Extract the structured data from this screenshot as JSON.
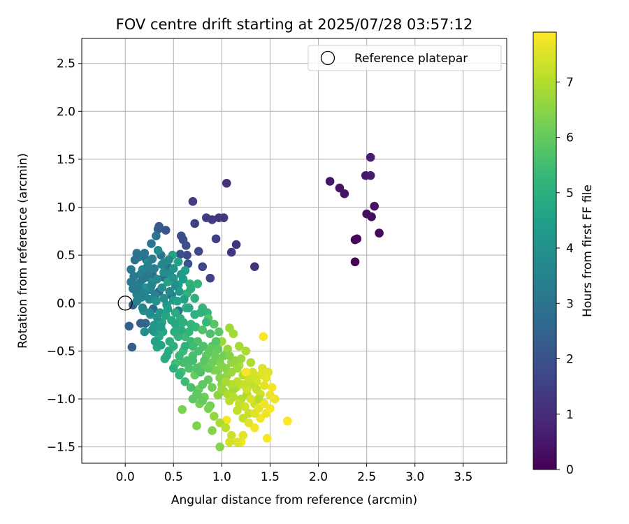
{
  "chart_data": {
    "type": "scatter",
    "title": "FOV centre drift starting at 2025/07/28 03:57:12",
    "xlabel": "Angular distance from reference (arcmin)",
    "ylabel": "Rotation from reference (arcmin)",
    "xlim": [
      -0.45,
      3.95
    ],
    "ylim": [
      -1.67,
      2.76
    ],
    "xticks": [
      "0.0",
      "0.5",
      "1.0",
      "1.5",
      "2.0",
      "2.5",
      "3.0",
      "3.5"
    ],
    "yticks": [
      "−1.5",
      "−1.0",
      "−0.5",
      "0.0",
      "0.5",
      "1.0",
      "1.5",
      "2.0",
      "2.5"
    ],
    "grid": true,
    "legend": {
      "label": "Reference platepar",
      "position": "top-right",
      "x": 0.0,
      "y": 0.0
    },
    "colorbar": {
      "label": "Hours from first FF file",
      "range": [
        0,
        7.9
      ],
      "ticks": [
        "0",
        "1",
        "2",
        "3",
        "4",
        "5",
        "6",
        "7"
      ],
      "colormap": [
        "#440154",
        "#482878",
        "#3e4989",
        "#31688e",
        "#26828e",
        "#1f9e89",
        "#35b779",
        "#6ece58",
        "#b5de2b",
        "#fde725"
      ]
    },
    "points": [
      [
        2.38,
        0.43,
        0.05
      ],
      [
        2.38,
        0.66,
        0.1
      ],
      [
        2.4,
        0.67,
        0.15
      ],
      [
        2.63,
        0.73,
        0.2
      ],
      [
        2.55,
        0.9,
        0.25
      ],
      [
        2.5,
        0.93,
        0.3
      ],
      [
        2.58,
        1.01,
        0.35
      ],
      [
        2.27,
        1.14,
        0.4
      ],
      [
        2.22,
        1.2,
        0.45
      ],
      [
        2.12,
        1.27,
        0.5
      ],
      [
        2.49,
        1.33,
        0.55
      ],
      [
        2.54,
        1.33,
        0.6
      ],
      [
        2.54,
        1.52,
        0.65
      ],
      [
        1.05,
        1.25,
        1.05
      ],
      [
        1.34,
        0.38,
        1.1
      ],
      [
        1.15,
        0.61,
        1.15
      ],
      [
        1.1,
        0.53,
        1.2
      ],
      [
        1.02,
        0.89,
        1.25
      ],
      [
        0.97,
        0.89,
        1.3
      ],
      [
        0.9,
        0.87,
        1.35
      ],
      [
        0.84,
        0.89,
        1.4
      ],
      [
        0.7,
        1.06,
        1.45
      ],
      [
        0.72,
        0.83,
        1.5
      ],
      [
        0.94,
        0.67,
        1.55
      ],
      [
        0.88,
        0.26,
        1.6
      ],
      [
        0.8,
        0.38,
        1.65
      ],
      [
        0.76,
        0.54,
        1.7
      ],
      [
        0.64,
        0.5,
        1.75
      ],
      [
        0.6,
        0.66,
        1.8
      ],
      [
        0.58,
        0.7,
        1.9
      ],
      [
        0.63,
        0.6,
        1.95
      ],
      [
        0.57,
        0.51,
        2.0
      ],
      [
        0.65,
        0.41,
        2.05
      ],
      [
        0.42,
        0.76,
        2.1
      ],
      [
        0.35,
        0.8,
        2.2
      ],
      [
        0.34,
        0.77,
        2.3
      ],
      [
        0.07,
        -0.46,
        2.35
      ],
      [
        0.04,
        -0.24,
        2.4
      ],
      [
        0.08,
        -0.02,
        2.45
      ],
      [
        0.16,
        -0.21,
        2.5
      ],
      [
        0.21,
        -0.21,
        2.55
      ],
      [
        0.29,
        -0.06,
        2.6
      ],
      [
        0.35,
        0.12,
        2.65
      ],
      [
        0.28,
        0.3,
        2.7
      ],
      [
        0.22,
        0.45,
        2.75
      ],
      [
        0.4,
        0.27,
        2.8
      ],
      [
        0.48,
        0.08,
        2.85
      ],
      [
        0.55,
        -0.08,
        2.9
      ],
      [
        0.44,
        0.38,
        2.95
      ],
      [
        0.37,
        0.5,
        3.0
      ],
      [
        0.32,
        0.7,
        3.05
      ],
      [
        0.27,
        0.62,
        3.1
      ],
      [
        0.14,
        0.48,
        3.15
      ],
      [
        0.06,
        0.35,
        3.2
      ],
      [
        0.06,
        0.22,
        3.25
      ],
      [
        0.1,
        0.19,
        3.3
      ],
      [
        0.15,
        0.21,
        3.35
      ],
      [
        0.22,
        0.27,
        3.4
      ],
      [
        0.26,
        0.14,
        3.45
      ],
      [
        0.31,
        0.08,
        3.5
      ],
      [
        0.12,
        0.09,
        3.55
      ],
      [
        0.17,
        0.06,
        3.6
      ],
      [
        0.25,
        0.04,
        3.65
      ],
      [
        0.18,
        0.35,
        3.7
      ],
      [
        0.24,
        0.43,
        3.75
      ],
      [
        0.34,
        0.55,
        3.8
      ],
      [
        0.4,
        0.42,
        3.85
      ],
      [
        0.46,
        0.31,
        3.9
      ],
      [
        0.38,
        0.16,
        3.95
      ],
      [
        0.28,
        0.21,
        4.0
      ],
      [
        0.21,
        0.16,
        4.05
      ],
      [
        0.19,
        -0.08,
        4.1
      ],
      [
        0.3,
        -0.23,
        4.15
      ],
      [
        0.36,
        -0.1,
        4.2
      ],
      [
        0.43,
        -0.02,
        4.25
      ],
      [
        0.5,
        0.03,
        4.3
      ],
      [
        0.55,
        0.19,
        4.35
      ],
      [
        0.6,
        0.25,
        4.4
      ],
      [
        0.62,
        0.34,
        4.45
      ],
      [
        0.55,
        0.43,
        4.5
      ],
      [
        0.49,
        0.5,
        4.55
      ],
      [
        0.44,
        0.22,
        4.6
      ],
      [
        0.42,
        -0.13,
        4.65
      ],
      [
        0.39,
        -0.3,
        4.7
      ],
      [
        0.33,
        -0.46,
        4.75
      ],
      [
        0.41,
        -0.58,
        4.8
      ],
      [
        0.45,
        -0.5,
        4.85
      ],
      [
        0.51,
        -0.3,
        4.9
      ],
      [
        0.57,
        -0.16,
        4.95
      ],
      [
        0.63,
        -0.05,
        5.0
      ],
      [
        0.64,
        0.1,
        5.05
      ],
      [
        0.67,
        0.2,
        5.1
      ],
      [
        0.75,
        0.2,
        5.15
      ],
      [
        0.8,
        -0.05,
        5.2
      ],
      [
        0.85,
        -0.1,
        5.25
      ],
      [
        0.73,
        -0.25,
        5.3
      ],
      [
        0.68,
        -0.4,
        5.35
      ],
      [
        0.6,
        -0.5,
        5.4
      ],
      [
        0.52,
        -0.63,
        5.45
      ],
      [
        0.58,
        -0.72,
        5.5
      ],
      [
        0.64,
        -0.6,
        5.55
      ],
      [
        0.7,
        -0.55,
        5.6
      ],
      [
        0.75,
        -0.4,
        5.65
      ],
      [
        0.8,
        -0.28,
        5.7
      ],
      [
        0.86,
        -0.16,
        5.75
      ],
      [
        0.92,
        -0.22,
        5.8
      ],
      [
        0.97,
        -0.3,
        5.85
      ],
      [
        0.9,
        -0.45,
        5.9
      ],
      [
        0.84,
        -0.55,
        5.95
      ],
      [
        0.78,
        -0.66,
        6.0
      ],
      [
        0.72,
        -0.75,
        6.05
      ],
      [
        0.76,
        -0.9,
        6.1
      ],
      [
        0.82,
        -0.98,
        6.15
      ],
      [
        0.88,
        -1.07,
        6.2
      ],
      [
        0.77,
        -1.05,
        6.25
      ],
      [
        0.59,
        -1.11,
        6.3
      ],
      [
        0.74,
        -1.28,
        6.35
      ],
      [
        0.9,
        -1.33,
        6.4
      ],
      [
        0.98,
        -1.5,
        6.45
      ],
      [
        1.0,
        -0.85,
        6.5
      ],
      [
        1.05,
        -0.76,
        6.55
      ],
      [
        1.1,
        -0.62,
        6.6
      ],
      [
        1.06,
        -0.48,
        6.65
      ],
      [
        1.0,
        -0.4,
        6.7
      ],
      [
        1.08,
        -0.26,
        6.75
      ],
      [
        1.12,
        -0.32,
        6.8
      ],
      [
        1.18,
        -0.45,
        6.85
      ],
      [
        1.25,
        -0.5,
        6.9
      ],
      [
        1.3,
        -0.62,
        6.95
      ],
      [
        1.22,
        -0.75,
        7.0
      ],
      [
        1.15,
        -0.88,
        7.05
      ],
      [
        1.08,
        -1.02,
        7.1
      ],
      [
        1.16,
        -1.12,
        7.15
      ],
      [
        1.22,
        -1.2,
        7.2
      ],
      [
        1.28,
        -1.15,
        7.25
      ],
      [
        1.34,
        -1.05,
        7.3
      ],
      [
        1.4,
        -0.95,
        7.35
      ],
      [
        1.36,
        -0.82,
        7.4
      ],
      [
        1.32,
        -0.72,
        7.45
      ],
      [
        1.42,
        -0.68,
        7.5
      ],
      [
        1.48,
        -0.72,
        7.55
      ],
      [
        1.44,
        -0.86,
        7.6
      ],
      [
        1.5,
        -0.96,
        7.65
      ],
      [
        1.55,
        -1.0,
        7.7
      ],
      [
        1.46,
        -1.15,
        7.72
      ],
      [
        1.4,
        -1.2,
        7.75
      ],
      [
        1.34,
        -1.3,
        7.78
      ],
      [
        1.2,
        -1.45,
        7.8
      ],
      [
        1.05,
        -1.22,
        7.82
      ],
      [
        1.47,
        -1.41,
        7.85
      ],
      [
        1.43,
        -0.35,
        7.87
      ],
      [
        1.68,
        -1.23,
        7.9
      ],
      [
        1.25,
        -0.72,
        7.85
      ],
      [
        1.18,
        -0.65,
        6.9
      ],
      [
        1.12,
        -0.9,
        6.8
      ],
      [
        1.2,
        -1.0,
        7.0
      ],
      [
        1.26,
        -0.95,
        6.95
      ],
      [
        1.3,
        -0.85,
        7.1
      ],
      [
        1.36,
        -0.9,
        7.2
      ],
      [
        1.38,
        -1.0,
        7.0
      ],
      [
        0.95,
        -0.6,
        6.3
      ],
      [
        0.92,
        -0.7,
        6.35
      ],
      [
        0.98,
        -0.78,
        6.4
      ],
      [
        1.02,
        -0.92,
        6.45
      ],
      [
        0.96,
        -0.96,
        6.5
      ],
      [
        0.9,
        -0.88,
        6.2
      ],
      [
        0.86,
        -0.8,
        6.0
      ],
      [
        0.8,
        -0.85,
        5.9
      ],
      [
        0.74,
        -0.95,
        5.8
      ],
      [
        0.7,
        -1.0,
        5.85
      ],
      [
        0.78,
        -0.72,
        5.7
      ],
      [
        0.66,
        -0.68,
        5.6
      ],
      [
        0.6,
        -0.62,
        5.5
      ],
      [
        0.56,
        -0.55,
        5.3
      ],
      [
        0.62,
        -0.35,
        5.4
      ],
      [
        0.68,
        -0.22,
        5.2
      ],
      [
        0.72,
        -0.12,
        5.0
      ],
      [
        0.78,
        -0.1,
        5.1
      ],
      [
        0.84,
        -0.2,
        5.3
      ],
      [
        0.88,
        -0.32,
        5.6
      ],
      [
        0.94,
        -0.4,
        5.8
      ],
      [
        0.96,
        -0.48,
        6.0
      ],
      [
        1.02,
        -0.55,
        6.2
      ],
      [
        1.08,
        -0.55,
        6.4
      ],
      [
        1.14,
        -0.6,
        6.6
      ],
      [
        1.2,
        -0.58,
        6.7
      ],
      [
        1.16,
        -0.68,
        6.75
      ],
      [
        1.1,
        -0.72,
        6.7
      ],
      [
        1.04,
        -0.68,
        6.5
      ],
      [
        0.98,
        -0.62,
        6.3
      ],
      [
        0.93,
        -0.55,
        6.1
      ],
      [
        0.87,
        -0.5,
        5.9
      ],
      [
        0.81,
        -0.45,
        5.7
      ],
      [
        0.76,
        -0.5,
        5.6
      ],
      [
        0.7,
        -0.45,
        5.4
      ],
      [
        0.66,
        -0.3,
        5.2
      ],
      [
        0.6,
        -0.2,
        5.0
      ],
      [
        0.52,
        -0.1,
        4.8
      ],
      [
        0.48,
        -0.18,
        4.7
      ],
      [
        0.46,
        -0.4,
        4.9
      ],
      [
        0.5,
        -0.45,
        5.0
      ],
      [
        0.55,
        -0.35,
        5.1
      ],
      [
        0.38,
        -0.2,
        4.6
      ],
      [
        0.35,
        -0.35,
        4.7
      ],
      [
        0.3,
        -0.3,
        4.4
      ],
      [
        0.26,
        -0.12,
        4.2
      ],
      [
        0.32,
        0.02,
        4.0
      ],
      [
        0.4,
        0.05,
        3.9
      ],
      [
        0.46,
        0.12,
        3.8
      ],
      [
        0.52,
        0.18,
        3.9
      ],
      [
        0.58,
        0.3,
        4.2
      ],
      [
        0.5,
        0.36,
        4.0
      ],
      [
        0.45,
        0.45,
        3.7
      ],
      [
        0.38,
        0.4,
        3.6
      ],
      [
        0.3,
        0.36,
        3.4
      ],
      [
        0.24,
        0.3,
        3.2
      ],
      [
        0.18,
        0.25,
        3.1
      ],
      [
        0.14,
        0.14,
        3.3
      ],
      [
        0.2,
        0.1,
        3.5
      ],
      [
        0.27,
        0.18,
        3.6
      ],
      [
        0.33,
        0.25,
        3.75
      ],
      [
        0.4,
        0.32,
        3.85
      ],
      [
        0.5,
        0.26,
        4.1
      ],
      [
        0.56,
        0.12,
        4.3
      ],
      [
        0.61,
        0.04,
        4.5
      ],
      [
        0.66,
        -0.05,
        4.7
      ],
      [
        0.72,
        0.05,
        5.0
      ],
      [
        0.68,
        0.15,
        4.9
      ],
      [
        0.54,
        0.02,
        4.6
      ],
      [
        0.44,
        -0.06,
        4.4
      ],
      [
        0.12,
        0.52,
        3.0
      ],
      [
        0.1,
        0.45,
        2.9
      ],
      [
        0.2,
        0.52,
        3.1
      ],
      [
        0.28,
        0.46,
        3.3
      ],
      [
        0.23,
        0.38,
        3.45
      ],
      [
        0.16,
        0.3,
        3.35
      ],
      [
        0.09,
        0.28,
        3.15
      ],
      [
        0.08,
        0.15,
        3.25
      ],
      [
        0.12,
        0.02,
        3.5
      ],
      [
        0.18,
        -0.05,
        3.6
      ],
      [
        0.25,
        -0.1,
        3.8
      ],
      [
        0.33,
        -0.15,
        4.0
      ],
      [
        0.37,
        -0.25,
        4.3
      ],
      [
        0.28,
        -0.28,
        4.1
      ],
      [
        0.2,
        -0.3,
        3.9
      ],
      [
        0.31,
        -0.4,
        4.5
      ],
      [
        0.37,
        -0.44,
        4.6
      ],
      [
        0.43,
        -0.55,
        4.8
      ],
      [
        0.5,
        -0.68,
        5.0
      ],
      [
        0.56,
        -0.75,
        5.2
      ],
      [
        0.62,
        -0.82,
        5.4
      ],
      [
        0.68,
        -0.88,
        5.6
      ],
      [
        0.75,
        -0.96,
        5.9
      ],
      [
        0.8,
        -1.02,
        6.0
      ],
      [
        0.86,
        -1.1,
        6.3
      ],
      [
        0.92,
        -1.18,
        6.6
      ],
      [
        0.98,
        -1.25,
        6.9
      ],
      [
        1.04,
        -1.3,
        7.1
      ],
      [
        1.1,
        -1.38,
        7.3
      ],
      [
        1.16,
        -1.45,
        7.5
      ],
      [
        1.08,
        -1.45,
        7.4
      ],
      [
        1.22,
        -1.38,
        7.6
      ],
      [
        1.28,
        -1.25,
        7.55
      ],
      [
        1.34,
        -1.15,
        7.5
      ],
      [
        1.38,
        -1.1,
        7.6
      ],
      [
        1.44,
        -1.05,
        7.7
      ],
      [
        1.5,
        -1.1,
        7.8
      ],
      [
        1.52,
        -0.88,
        7.75
      ],
      [
        1.46,
        -0.78,
        7.65
      ],
      [
        1.4,
        -0.75,
        7.55
      ],
      [
        1.34,
        -0.78,
        7.4
      ],
      [
        1.28,
        -0.8,
        7.3
      ],
      [
        1.22,
        -0.85,
        7.25
      ],
      [
        1.16,
        -0.82,
        7.15
      ],
      [
        1.1,
        -0.85,
        7.0
      ],
      [
        1.04,
        -0.82,
        6.85
      ],
      [
        1.0,
        -0.9,
        6.7
      ],
      [
        1.06,
        -0.95,
        6.9
      ],
      [
        1.12,
        -0.98,
        7.05
      ],
      [
        1.18,
        -1.05,
        7.2
      ],
      [
        1.24,
        -1.08,
        7.35
      ],
      [
        1.3,
        -1.0,
        7.45
      ],
      [
        1.26,
        -0.9,
        7.3
      ],
      [
        0.62,
        -0.45,
        5.1
      ],
      [
        0.58,
        -0.28,
        4.9
      ],
      [
        0.52,
        -0.22,
        4.75
      ],
      [
        0.7,
        -0.6,
        5.5
      ],
      [
        0.74,
        -0.68,
        5.7
      ],
      [
        0.82,
        -0.6,
        5.8
      ],
      [
        0.86,
        -0.68,
        6.0
      ],
      [
        0.9,
        -0.62,
        6.1
      ],
      [
        0.96,
        -0.7,
        6.3
      ],
      [
        1.0,
        -0.66,
        6.4
      ]
    ]
  }
}
